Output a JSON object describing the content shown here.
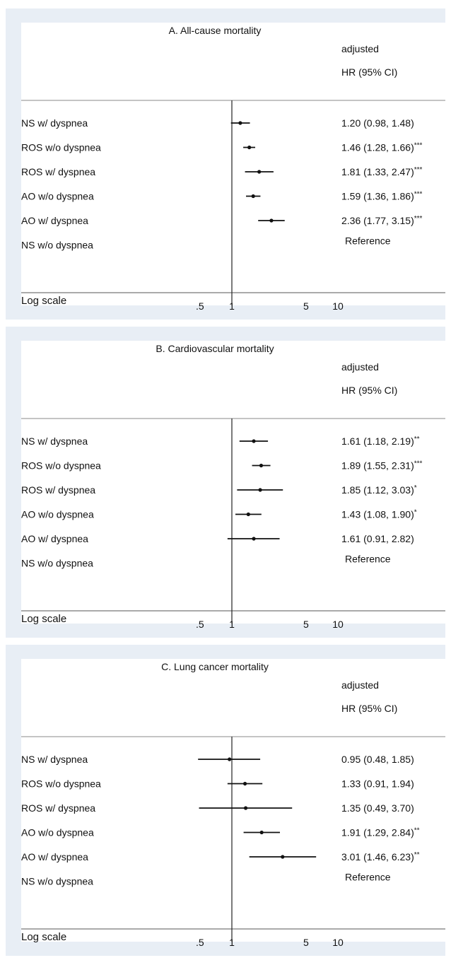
{
  "chart_data": [
    {
      "type": "forest",
      "title": "A. All-cause mortality",
      "header": [
        "adjusted",
        "HR (95% CI)"
      ],
      "xlabel": "Log scale",
      "x_scale": "log",
      "x_ticks": [
        ".5",
        "1",
        "5",
        "10"
      ],
      "reference_line": 1,
      "rows": [
        {
          "label": "NS w/ dyspnea",
          "hr": 1.2,
          "lo": 0.98,
          "hi": 1.48,
          "text": "1.20 (0.98, 1.48)",
          "sig": ""
        },
        {
          "label": "ROS w/o dyspnea",
          "hr": 1.46,
          "lo": 1.28,
          "hi": 1.66,
          "text": "1.46 (1.28, 1.66)",
          "sig": "***"
        },
        {
          "label": "ROS w/ dyspnea",
          "hr": 1.81,
          "lo": 1.33,
          "hi": 2.47,
          "text": "1.81 (1.33, 2.47)",
          "sig": "***"
        },
        {
          "label": "AO w/o dyspnea",
          "hr": 1.59,
          "lo": 1.36,
          "hi": 1.86,
          "text": "1.59 (1.36, 1.86)",
          "sig": "***"
        },
        {
          "label": "AO w/ dyspnea",
          "hr": 2.36,
          "lo": 1.77,
          "hi": 3.15,
          "text": "2.36 (1.77, 3.15)",
          "sig": "***"
        },
        {
          "label": "NS w/o dyspnea",
          "hr": null,
          "lo": null,
          "hi": null,
          "text": "Reference",
          "sig": ""
        }
      ]
    },
    {
      "type": "forest",
      "title": "B. Cardiovascular mortality",
      "header": [
        "adjusted",
        "HR (95% CI)"
      ],
      "xlabel": "Log scale",
      "x_scale": "log",
      "x_ticks": [
        ".5",
        "1",
        "5",
        "10"
      ],
      "reference_line": 1,
      "rows": [
        {
          "label": "NS w/ dyspnea",
          "hr": 1.61,
          "lo": 1.18,
          "hi": 2.19,
          "text": "1.61 (1.18, 2.19)",
          "sig": "**"
        },
        {
          "label": "ROS w/o dyspnea",
          "hr": 1.89,
          "lo": 1.55,
          "hi": 2.31,
          "text": "1.89 (1.55, 2.31)",
          "sig": "***"
        },
        {
          "label": "ROS w/ dyspnea",
          "hr": 1.85,
          "lo": 1.12,
          "hi": 3.03,
          "text": "1.85 (1.12, 3.03)",
          "sig": "*"
        },
        {
          "label": "AO w/o dyspnea",
          "hr": 1.43,
          "lo": 1.08,
          "hi": 1.9,
          "text": "1.43 (1.08, 1.90)",
          "sig": "*"
        },
        {
          "label": "AO w/ dyspnea",
          "hr": 1.61,
          "lo": 0.91,
          "hi": 2.82,
          "text": "1.61 (0.91, 2.82)",
          "sig": ""
        },
        {
          "label": "NS w/o dyspnea",
          "hr": null,
          "lo": null,
          "hi": null,
          "text": "Reference",
          "sig": ""
        }
      ]
    },
    {
      "type": "forest",
      "title": "C. Lung cancer mortality",
      "header": [
        "adjusted",
        "HR (95% CI)"
      ],
      "xlabel": "Log scale",
      "x_scale": "log",
      "x_ticks": [
        ".5",
        "1",
        "5",
        "10"
      ],
      "reference_line": 1,
      "rows": [
        {
          "label": "NS w/ dyspnea",
          "hr": 0.95,
          "lo": 0.48,
          "hi": 1.85,
          "text": "0.95 (0.48, 1.85)",
          "sig": ""
        },
        {
          "label": "ROS w/o dyspnea",
          "hr": 1.33,
          "lo": 0.91,
          "hi": 1.94,
          "text": "1.33 (0.91, 1.94)",
          "sig": ""
        },
        {
          "label": "ROS w/ dyspnea",
          "hr": 1.35,
          "lo": 0.49,
          "hi": 3.7,
          "text": "1.35 (0.49, 3.70)",
          "sig": ""
        },
        {
          "label": "AO w/o dyspnea",
          "hr": 1.91,
          "lo": 1.29,
          "hi": 2.84,
          "text": "1.91 (1.29, 2.84)",
          "sig": "**"
        },
        {
          "label": "AO w/ dyspnea",
          "hr": 3.01,
          "lo": 1.46,
          "hi": 6.23,
          "text": "3.01 (1.46, 6.23)",
          "sig": "**"
        },
        {
          "label": "NS w/o dyspnea",
          "hr": null,
          "lo": null,
          "hi": null,
          "text": "Reference",
          "sig": ""
        }
      ]
    }
  ]
}
